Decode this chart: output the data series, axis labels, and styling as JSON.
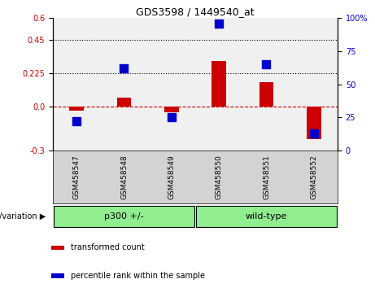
{
  "title": "GDS3598 / 1449540_at",
  "categories": [
    "GSM458547",
    "GSM458548",
    "GSM458549",
    "GSM458550",
    "GSM458551",
    "GSM458552"
  ],
  "transformed_count": [
    -0.03,
    0.06,
    -0.04,
    0.305,
    0.165,
    -0.22
  ],
  "percentile_rank_pct": [
    22,
    62,
    25,
    96,
    65,
    13
  ],
  "bar_color": "#cc0000",
  "dot_color": "#0000cc",
  "ylim_left": [
    -0.3,
    0.6
  ],
  "yticks_left": [
    -0.3,
    0.0,
    0.225,
    0.45,
    0.6
  ],
  "ylim_right": [
    0,
    100
  ],
  "yticks_right": [
    0,
    25,
    50,
    75,
    100
  ],
  "hline_y": [
    0.225,
    0.45
  ],
  "zero_line_y": 0.0,
  "group_label": "genotype/variation",
  "group_defs": [
    {
      "label": "p300 +/-",
      "start": 0,
      "end": 3
    },
    {
      "label": "wild-type",
      "start": 3,
      "end": 6
    }
  ],
  "group_color": "#90ee90",
  "legend_items": [
    {
      "label": "transformed count",
      "color": "#cc0000"
    },
    {
      "label": "percentile rank within the sample",
      "color": "#0000cc"
    }
  ],
  "dotted_line_color": "black",
  "zero_dashed_color": "#cc0000",
  "bg_plot": "#f0f0f0",
  "bg_label": "#d3d3d3",
  "bar_width": 0.3,
  "dot_size": 50
}
